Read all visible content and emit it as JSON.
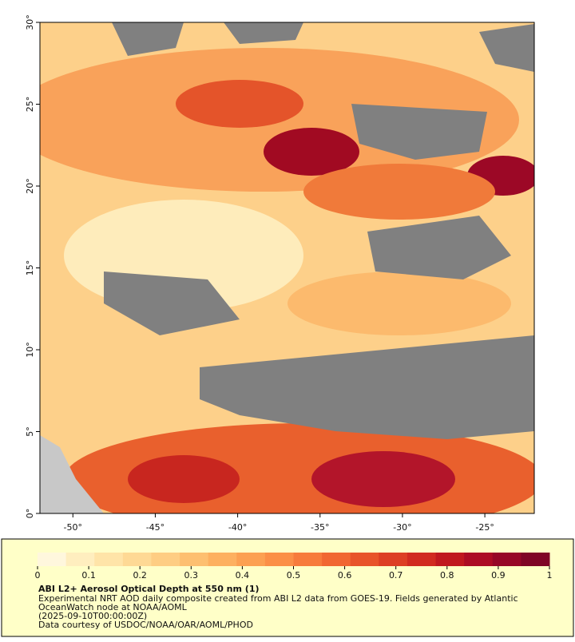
{
  "map": {
    "xlim": [
      -52,
      -22
    ],
    "ylim": [
      0,
      30
    ],
    "xticks": [
      {
        "value": -50,
        "label": "-50°"
      },
      {
        "value": -45,
        "label": "-45°"
      },
      {
        "value": -40,
        "label": "-40°"
      },
      {
        "value": -35,
        "label": "-35°"
      },
      {
        "value": -30,
        "label": "-30°"
      },
      {
        "value": -25,
        "label": "-25°"
      }
    ],
    "yticks": [
      {
        "value": 0,
        "label": "0°"
      },
      {
        "value": 5,
        "label": "5°"
      },
      {
        "value": 10,
        "label": "10°"
      },
      {
        "value": 15,
        "label": "15°"
      },
      {
        "value": 20,
        "label": "20°"
      },
      {
        "value": 25,
        "label": "25°"
      },
      {
        "value": 30,
        "label": "30°"
      }
    ]
  },
  "colorbar": {
    "lim": [
      0,
      1
    ],
    "ticks": [
      0,
      0.1,
      0.2,
      0.3,
      0.4,
      0.5,
      0.6,
      0.7,
      0.8,
      0.9,
      1
    ],
    "colors": [
      "#fff7dd",
      "#ffeebf",
      "#ffe4a8",
      "#fed995",
      "#fecd83",
      "#fdbf70",
      "#fdb060",
      "#fca052",
      "#fb8f47",
      "#f77b3c",
      "#f16732",
      "#e8532a",
      "#dd3e24",
      "#d12a20",
      "#c0181f",
      "#ac0c24",
      "#960727",
      "#7f0526"
    ]
  },
  "caption": {
    "title": "ABI L2+ Aerosol Optical Depth at 550 nm (1)",
    "lines": [
      "Experimental NRT AOD daily composite created from ABI L2 data from GOES-19. Fields generated by Atlantic",
      "OceanWatch node at NOAA/AOML",
      "(2025-09-10T00:00:00Z)",
      "Data courtesy of USDOC/NOAA/OAR/AOML/PHOD"
    ]
  }
}
